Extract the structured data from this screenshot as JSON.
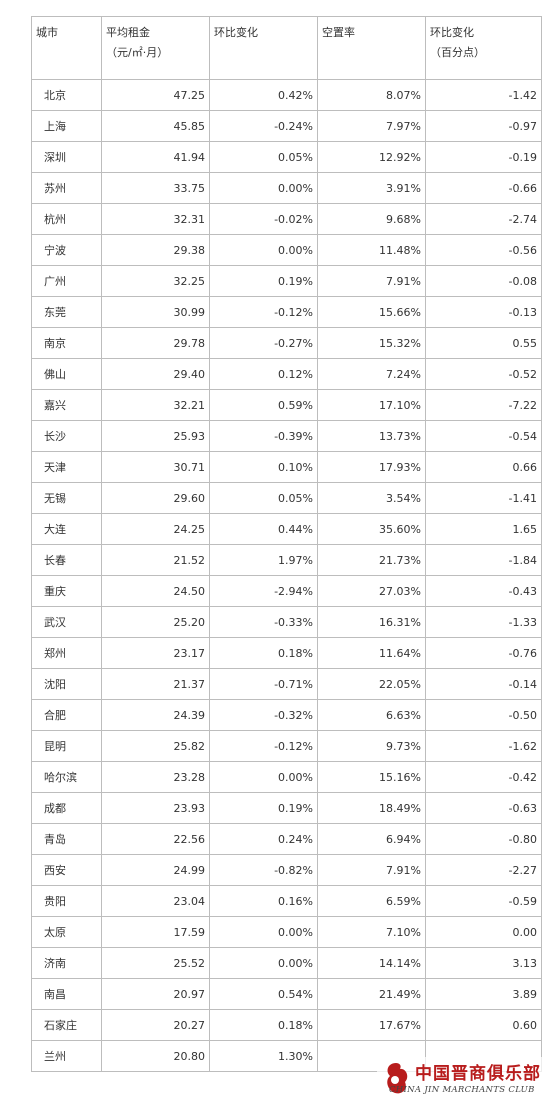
{
  "table": {
    "headers": [
      {
        "line1": "城市",
        "line2": ""
      },
      {
        "line1": "平均租金",
        "line2": "（元/㎡·月）"
      },
      {
        "line1": "环比变化",
        "line2": ""
      },
      {
        "line1": "空置率",
        "line2": ""
      },
      {
        "line1": "环比变化",
        "line2": "（百分点）"
      }
    ],
    "rows": [
      [
        "北京",
        "47.25",
        "0.42%",
        "8.07%",
        "-1.42"
      ],
      [
        "上海",
        "45.85",
        "-0.24%",
        "7.97%",
        "-0.97"
      ],
      [
        "深圳",
        "41.94",
        "0.05%",
        "12.92%",
        "-0.19"
      ],
      [
        "苏州",
        "33.75",
        "0.00%",
        "3.91%",
        "-0.66"
      ],
      [
        "杭州",
        "32.31",
        "-0.02%",
        "9.68%",
        "-2.74"
      ],
      [
        "宁波",
        "29.38",
        "0.00%",
        "11.48%",
        "-0.56"
      ],
      [
        "广州",
        "32.25",
        "0.19%",
        "7.91%",
        "-0.08"
      ],
      [
        "东莞",
        "30.99",
        "-0.12%",
        "15.66%",
        "-0.13"
      ],
      [
        "南京",
        "29.78",
        "-0.27%",
        "15.32%",
        "0.55"
      ],
      [
        "佛山",
        "29.40",
        "0.12%",
        "7.24%",
        "-0.52"
      ],
      [
        "嘉兴",
        "32.21",
        "0.59%",
        "17.10%",
        "-7.22"
      ],
      [
        "长沙",
        "25.93",
        "-0.39%",
        "13.73%",
        "-0.54"
      ],
      [
        "天津",
        "30.71",
        "0.10%",
        "17.93%",
        "0.66"
      ],
      [
        "无锡",
        "29.60",
        "0.05%",
        "3.54%",
        "-1.41"
      ],
      [
        "大连",
        "24.25",
        "0.44%",
        "35.60%",
        "1.65"
      ],
      [
        "长春",
        "21.52",
        "1.97%",
        "21.73%",
        "-1.84"
      ],
      [
        "重庆",
        "24.50",
        "-2.94%",
        "27.03%",
        "-0.43"
      ],
      [
        "武汉",
        "25.20",
        "-0.33%",
        "16.31%",
        "-1.33"
      ],
      [
        "郑州",
        "23.17",
        "0.18%",
        "11.64%",
        "-0.76"
      ],
      [
        "沈阳",
        "21.37",
        "-0.71%",
        "22.05%",
        "-0.14"
      ],
      [
        "合肥",
        "24.39",
        "-0.32%",
        "6.63%",
        "-0.50"
      ],
      [
        "昆明",
        "25.82",
        "-0.12%",
        "9.73%",
        "-1.62"
      ],
      [
        "哈尔滨",
        "23.28",
        "0.00%",
        "15.16%",
        "-0.42"
      ],
      [
        "成都",
        "23.93",
        "0.19%",
        "18.49%",
        "-0.63"
      ],
      [
        "青岛",
        "22.56",
        "0.24%",
        "6.94%",
        "-0.80"
      ],
      [
        "西安",
        "24.99",
        "-0.82%",
        "7.91%",
        "-2.27"
      ],
      [
        "贵阳",
        "23.04",
        "0.16%",
        "6.59%",
        "-0.59"
      ],
      [
        "太原",
        "17.59",
        "0.00%",
        "7.10%",
        "0.00"
      ],
      [
        "济南",
        "25.52",
        "0.00%",
        "14.14%",
        "3.13"
      ],
      [
        "南昌",
        "20.97",
        "0.54%",
        "21.49%",
        "3.89"
      ],
      [
        "石家庄",
        "20.27",
        "0.18%",
        "17.67%",
        "0.60"
      ],
      [
        "兰州",
        "20.80",
        "1.30%",
        "",
        ""
      ]
    ]
  },
  "watermark": {
    "name_cn": "中国晋商俱乐部",
    "name_en": "CHINA JIN MARCHANTS CLUB",
    "color": "#b81c1c"
  }
}
